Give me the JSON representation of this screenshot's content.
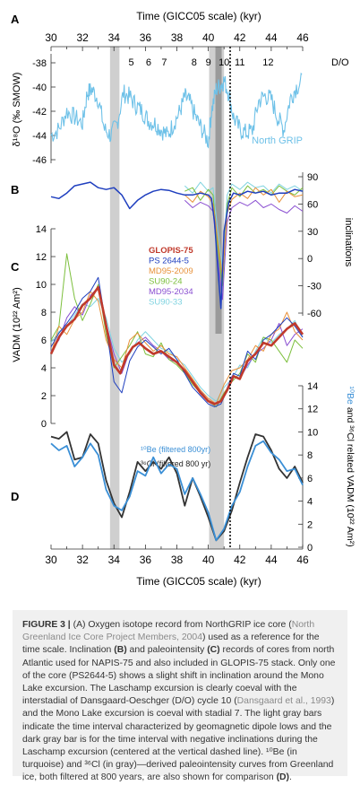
{
  "panels": {
    "A": {
      "label": "A",
      "ylabel": "δ¹⁸O (‰ SMOW)",
      "yticks": [
        "-38",
        "-40",
        "-42",
        "-44",
        "-46"
      ],
      "series_label": "North GRIP",
      "do_header": "D/O",
      "do_numbers": [
        "5",
        "6",
        "7",
        "8",
        "9",
        "10",
        "11",
        "12"
      ]
    },
    "B": {
      "label": "B",
      "ylabel": "inclinations",
      "yticks": [
        "90",
        "60",
        "30",
        "0",
        "-30",
        "-60"
      ]
    },
    "C": {
      "label": "C",
      "ylabel": "VADM (10²² Am²)",
      "yticks": [
        "14",
        "12",
        "10",
        "8",
        "6",
        "4",
        "2",
        "0"
      ],
      "legend": [
        "GLOPIS-75",
        "PS 2644-5",
        "MD95-2009",
        "SU90-24",
        "MD95-2034",
        "SU90-33"
      ]
    },
    "D": {
      "label": "D",
      "ylabel_a": "¹⁰Be",
      "ylabel_b": " and ³⁶Cl related VADM (10²² Am²)",
      "yticks": [
        "14",
        "12",
        "10",
        "8",
        "6",
        "4",
        "2",
        "0"
      ],
      "legend": [
        "¹⁰Be (filtered 800yr)",
        "³⁶Cl (filtered 800 yr)"
      ]
    },
    "xticks": [
      "30",
      "32",
      "34",
      "36",
      "38",
      "40",
      "42",
      "44",
      "46"
    ],
    "xlabel": "Time (GICC05 scale) (kyr)"
  },
  "colors": {
    "ngrip": "#6ec1e8",
    "glopis": "#c0392b",
    "ps2644": "#1f3fbf",
    "md95_2009": "#e8913a",
    "su90_24": "#7cbf3c",
    "md95_2034": "#8a4fd1",
    "su90_33": "#7fd3e0",
    "be10": "#3a8fd6",
    "cl36": "#333333",
    "gray_bar": "#cfcfcf",
    "dark_bar": "#9a9a9a"
  },
  "chart_data": [
    {
      "type": "line",
      "panel": "A",
      "ylabel": "δ¹⁸O (‰ SMOW)",
      "ylim": [
        -46,
        -37
      ],
      "xlim": [
        30,
        46
      ],
      "series": [
        {
          "name": "North GRIP",
          "x": [
            30,
            30.5,
            31,
            31.5,
            32,
            32.3,
            32.6,
            33,
            33.4,
            33.8,
            34.2,
            34.6,
            35,
            35.4,
            35.8,
            36.2,
            36.6,
            37,
            37.4,
            37.8,
            38.2,
            38.5,
            38.8,
            39.2,
            39.6,
            40,
            40.2,
            40.5,
            40.8,
            41.0,
            41.3,
            41.6,
            42,
            42.4,
            42.8,
            43.2,
            43.6,
            44,
            44.4,
            44.8,
            45.2,
            45.6,
            46
          ],
          "y": [
            -44,
            -43.5,
            -42,
            -42.5,
            -43,
            -40.5,
            -40.2,
            -41,
            -43.5,
            -44,
            -43,
            -40.5,
            -40.8,
            -41.5,
            -42,
            -42.8,
            -43,
            -43.5,
            -44,
            -43,
            -42,
            -40.8,
            -41.2,
            -42.5,
            -43.5,
            -44.5,
            -42,
            -40.2,
            -39.8,
            -39.5,
            -40.5,
            -42.5,
            -43.5,
            -43.8,
            -43.6,
            -41.2,
            -40.7,
            -41,
            -42.5,
            -43.5,
            -41,
            -40,
            -39.5
          ]
        }
      ]
    },
    {
      "type": "line",
      "panel": "B",
      "ylabel": "inclinations",
      "ylim": [
        -60,
        90
      ],
      "xlim": [
        30,
        46
      ],
      "series": [
        {
          "name": "PS 2644-5",
          "x": [
            30,
            30.5,
            31,
            31.5,
            32,
            32.5,
            33,
            33.5,
            34,
            34.5,
            35,
            35.5,
            36,
            36.5,
            37,
            37.5,
            38,
            38.5,
            39,
            39.5,
            40,
            40.2,
            40.4,
            40.6,
            40.8,
            41,
            41.3,
            41.6,
            42,
            42.5,
            43,
            43.5,
            44,
            44.5,
            45,
            45.5,
            46
          ],
          "y": [
            68,
            66,
            72,
            80,
            82,
            84,
            78,
            76,
            78,
            70,
            55,
            64,
            70,
            74,
            76,
            75,
            72,
            70,
            70,
            72,
            70,
            66,
            40,
            -10,
            -55,
            30,
            62,
            72,
            70,
            74,
            72,
            74,
            70,
            72,
            72,
            76,
            74
          ]
        },
        {
          "name": "MD95-2009",
          "x": [
            38.5,
            39,
            39.5,
            40,
            40.3,
            40.6,
            40.9,
            41.2,
            41.5,
            42,
            42.5,
            43,
            43.5,
            44,
            44.5,
            45,
            45.5,
            46
          ],
          "y": [
            70,
            62,
            74,
            68,
            60,
            20,
            -20,
            50,
            65,
            72,
            66,
            78,
            70,
            76,
            62,
            74,
            68,
            70
          ]
        },
        {
          "name": "SU90-24",
          "x": [
            38.5,
            39,
            39.5,
            40,
            40.3,
            40.6,
            40.9,
            41.2,
            41.5,
            42,
            42.5,
            43,
            43.5,
            44,
            44.5,
            45,
            45.5,
            46
          ],
          "y": [
            74,
            78,
            64,
            76,
            70,
            10,
            -30,
            60,
            78,
            68,
            80,
            72,
            76,
            70,
            80,
            74,
            70,
            78
          ]
        },
        {
          "name": "MD95-2034",
          "x": [
            38.5,
            39,
            39.5,
            40,
            40.3,
            40.6,
            40.9,
            41.2,
            41.5,
            42,
            42.5,
            43,
            43.5,
            44,
            44.5,
            45,
            45.5,
            46
          ],
          "y": [
            64,
            56,
            62,
            58,
            52,
            0,
            -45,
            40,
            56,
            62,
            58,
            64,
            56,
            60,
            54,
            50,
            58,
            52
          ]
        },
        {
          "name": "SU90-33",
          "x": [
            38.5,
            39,
            39.5,
            40,
            40.3,
            40.6,
            40.9,
            41.2,
            41.5,
            42,
            42.5,
            43,
            43.5,
            44,
            44.5,
            45,
            45.5,
            46
          ],
          "y": [
            80,
            72,
            84,
            74,
            78,
            30,
            -10,
            70,
            82,
            76,
            84,
            78,
            80,
            72,
            82,
            76,
            80,
            74
          ]
        }
      ]
    },
    {
      "type": "line",
      "panel": "C",
      "ylabel": "VADM (10²² Am²)",
      "ylim": [
        0,
        14
      ],
      "xlim": [
        30,
        46
      ],
      "series": [
        {
          "name": "GLOPIS-75",
          "x": [
            30,
            30.5,
            31,
            31.5,
            32,
            32.5,
            33,
            33.3,
            33.6,
            34,
            34.4,
            34.8,
            35.2,
            35.6,
            36,
            36.5,
            37,
            37.5,
            38,
            38.5,
            39,
            39.5,
            40,
            40.4,
            40.8,
            41.2,
            41.6,
            42,
            42.5,
            43,
            43.5,
            44,
            44.5,
            45,
            45.5,
            46
          ],
          "y": [
            5,
            6.2,
            7,
            7.5,
            8.5,
            9,
            9.8,
            8.2,
            6.5,
            4.2,
            3.6,
            4.8,
            5.5,
            5.8,
            5.4,
            5,
            5.2,
            4.8,
            4.4,
            3.8,
            3,
            2.2,
            1.6,
            1.4,
            1.6,
            2.4,
            3.4,
            3.2,
            4.5,
            5,
            5.8,
            5.6,
            6.2,
            6.8,
            7.2,
            6.4
          ]
        },
        {
          "name": "PS 2644-5",
          "x": [
            30,
            30.5,
            31,
            31.5,
            32,
            32.5,
            33,
            33.5,
            34,
            34.5,
            35,
            35.5,
            36,
            36.5,
            37,
            37.5,
            38,
            38.5,
            39,
            39.5,
            40,
            40.4,
            40.8,
            41.2,
            41.6,
            42,
            42.5,
            43,
            43.5,
            44,
            44.5,
            45,
            45.5,
            46
          ],
          "y": [
            5.5,
            6.5,
            7.2,
            8,
            9,
            9.5,
            10.5,
            7,
            3,
            2.2,
            4.5,
            5.5,
            6,
            5.5,
            5,
            5.4,
            4.6,
            3.6,
            2.6,
            2,
            1.4,
            1.2,
            1.4,
            2.4,
            3.6,
            3.4,
            5.2,
            4.6,
            6,
            6.4,
            7,
            7.6,
            7,
            6.2
          ]
        },
        {
          "name": "MD95-2009",
          "x": [
            30,
            30.5,
            31,
            31.5,
            32,
            32.5,
            33,
            33.5,
            34,
            34.5,
            35,
            35.5,
            36,
            36.5,
            37,
            37.5,
            38,
            38.5,
            39,
            39.5,
            40,
            40.5,
            41,
            41.5,
            42,
            42.5,
            43,
            43.5,
            44,
            44.5,
            45,
            45.5,
            46
          ],
          "y": [
            5,
            7,
            6.4,
            7.5,
            8,
            9.5,
            8.8,
            6,
            4.6,
            4,
            6,
            6.5,
            5.8,
            5.2,
            5.6,
            5,
            4.8,
            4,
            3.2,
            2.4,
            1.8,
            1.4,
            2.8,
            3.8,
            4,
            4.6,
            5.6,
            5.2,
            6.4,
            6.8,
            8,
            6.6,
            6
          ]
        },
        {
          "name": "SU90-24",
          "x": [
            30,
            30.5,
            31,
            31.5,
            32,
            32.5,
            33,
            33.5,
            34,
            34.5,
            35,
            35.5,
            36,
            36.5,
            37,
            37.5,
            38,
            38.5,
            39,
            39.5,
            40,
            40.5,
            41,
            41.5,
            42,
            42.5,
            43,
            43.5,
            44,
            44.5,
            45,
            45.5,
            46
          ],
          "y": [
            6,
            7,
            12.2,
            9,
            7.4,
            8.6,
            10,
            6.4,
            4,
            4.8,
            5.6,
            6.6,
            5,
            4.8,
            5.8,
            4.6,
            4.2,
            3.6,
            2.8,
            2.2,
            1.6,
            1.2,
            2.2,
            3,
            3.6,
            5,
            4.4,
            6.2,
            6,
            5.2,
            4.4,
            6,
            5.4
          ]
        },
        {
          "name": "MD95-2034",
          "x": [
            30,
            30.5,
            31,
            31.5,
            32,
            32.5,
            33,
            33.5,
            34,
            34.5,
            35,
            35.5,
            36,
            36.5,
            37,
            37.5,
            38,
            38.5,
            39,
            39.5,
            40,
            40.5,
            41,
            41.5,
            42,
            42.5,
            43,
            43.5,
            44,
            44.5,
            45,
            45.5,
            46
          ],
          "y": [
            5.2,
            6,
            7.6,
            8.4,
            7.8,
            9.2,
            9.8,
            7.2,
            5,
            3.6,
            5.2,
            5.8,
            6.2,
            5.6,
            5.2,
            4.6,
            4.4,
            3.8,
            3,
            2.4,
            1.6,
            1.2,
            2,
            3.4,
            3.2,
            4.2,
            5,
            5.4,
            6,
            7.2,
            5.6,
            6.4,
            6.8
          ]
        },
        {
          "name": "SU90-33",
          "x": [
            30,
            30.5,
            31,
            31.5,
            32,
            32.5,
            33,
            33.5,
            34,
            34.5,
            35,
            35.5,
            36,
            36.5,
            37,
            37.5,
            38,
            38.5,
            39,
            39.5,
            40,
            40.5,
            41,
            41.5,
            42,
            42.5,
            43,
            43.5,
            44,
            44.5,
            45,
            45.5,
            46
          ],
          "y": [
            5.8,
            6.6,
            7,
            7.8,
            8.6,
            8.4,
            9,
            7.6,
            5.4,
            4.4,
            5,
            6,
            6.6,
            6,
            5.4,
            5.2,
            4.6,
            4.2,
            3.4,
            2.6,
            2,
            1.6,
            2.6,
            3.2,
            4.2,
            4,
            5.2,
            6.2,
            5.8,
            6.4,
            6.8,
            7.4,
            6.2
          ]
        }
      ]
    },
    {
      "type": "line",
      "panel": "D",
      "ylim": [
        0,
        14
      ],
      "xlim": [
        30,
        46
      ],
      "series": [
        {
          "name": "¹⁰Be (filtered 800yr)",
          "x": [
            30,
            30.5,
            31,
            31.5,
            32,
            32.5,
            33,
            33.5,
            34,
            34.5,
            35,
            35.5,
            36,
            36.5,
            37,
            37.5,
            38,
            38.5,
            39,
            39.5,
            40,
            40.5,
            41,
            41.5,
            42,
            42.5,
            43,
            43.5,
            44,
            44.5,
            45,
            45.5,
            46
          ],
          "y": [
            9,
            8.4,
            8.8,
            7,
            7.8,
            9,
            8,
            5,
            3.6,
            3.2,
            4.4,
            6.6,
            6.2,
            7.8,
            6.4,
            7.2,
            6.8,
            4.6,
            6,
            4.6,
            3,
            0.6,
            1.6,
            3.6,
            4.8,
            7,
            8.8,
            9.2,
            8.2,
            7.6,
            6.6,
            6.8,
            5.4
          ]
        },
        {
          "name": "³⁶Cl (filtered 800 yr)",
          "x": [
            30,
            30.5,
            31,
            31.5,
            32,
            32.5,
            33,
            33.5,
            34,
            34.5,
            35,
            35.5,
            36,
            36.5,
            37,
            37.5,
            38,
            38.5,
            39,
            39.5,
            40,
            40.5,
            41,
            41.5,
            42,
            42.5,
            43,
            43.5,
            44,
            44.5,
            45,
            45.5,
            46
          ],
          "y": [
            9.6,
            9.4,
            10,
            7.6,
            7.8,
            9.8,
            9,
            5.8,
            3.8,
            2.6,
            4.8,
            7.4,
            6.6,
            7.4,
            6.8,
            7.8,
            6.4,
            3.6,
            6,
            4.4,
            2.6,
            0.6,
            1.4,
            3.2,
            5.6,
            7.8,
            9.8,
            9.6,
            8.4,
            6.8,
            6,
            7,
            5.6
          ]
        }
      ]
    }
  ],
  "caption": {
    "fig_label": "FIGURE 3 |",
    "p1": " (A) Oxygen isotope record from NorthGRIP ice core (",
    "ref1": "North Greenland Ice Core Project Members, 2004",
    "p2": ") used as a reference for the time scale. Inclination ",
    "p3": "(B)",
    "p4": " and paleointensity ",
    "p5": "(C)",
    "p6": " records of cores from north Atlantic used for NAPIS-75 and also included in GLOPIS-75 stack. Only one of the core (PS2644-5) shows a slight shift in inclination around the Mono Lake excursion. The Laschamp excursion is clearly coeval with the interstadial of Dansgaard-Oeschger (D/O) cycle 10 (",
    "ref2": "Dansgaard et al., 1993",
    "p7": ") and the Mono Lake excursion is coeval with stadial 7. The light gray bars indicate the time interval characterized by geomagnetic dipole lows and the dark gray bar is for the time interval with negative inclinations during the Laschamp excursion (centered at the vertical dashed line). ¹⁰Be (in turquoise) and ³⁶Cl (in gray)—derived paleointensity curves from Greenland ice, both filtered at 800 years, are also shown for comparison ",
    "p8": "(D)",
    "p9": "."
  }
}
